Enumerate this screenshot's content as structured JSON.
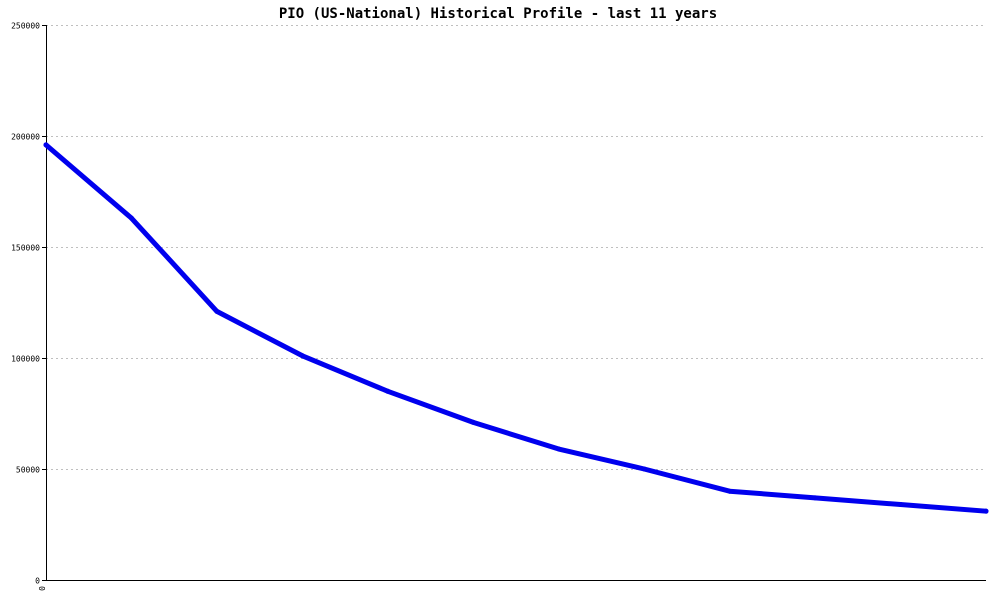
{
  "chart_data": {
    "type": "line",
    "title": "PIO (US-National) Historical Profile - last 11 years",
    "xlabel": "",
    "ylabel": "",
    "x_tick_labels": [
      "0"
    ],
    "y_ticks": [
      0,
      50000,
      100000,
      150000,
      200000,
      250000
    ],
    "y_tick_labels": [
      "0",
      "50000",
      "100000",
      "150000",
      "200000",
      "250000"
    ],
    "ylim": [
      0,
      250000
    ],
    "xlim": [
      0,
      11
    ],
    "grid": true,
    "series": [
      {
        "color": "#0000ee",
        "x": [
          0,
          1,
          2,
          3,
          4,
          5,
          6,
          7,
          8,
          9,
          10,
          11
        ],
        "values": [
          196000,
          163000,
          121000,
          101000,
          85000,
          71000,
          59000,
          50000,
          40000,
          37000,
          34000,
          31000
        ]
      }
    ]
  }
}
